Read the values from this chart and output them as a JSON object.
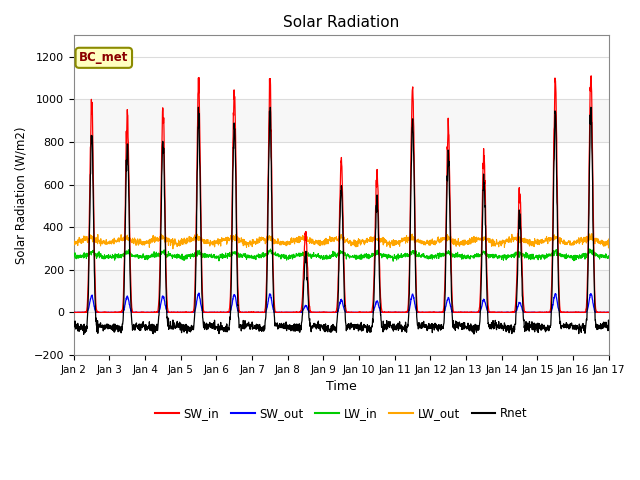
{
  "title": "Solar Radiation",
  "xlabel": "Time",
  "ylabel": "Solar Radiation (W/m2)",
  "ylim": [
    -200,
    1300
  ],
  "xlim": [
    0,
    15
  ],
  "xtick_labels": [
    "Jan 2",
    "Jan 3",
    "Jan 4",
    "Jan 5",
    "Jan 6",
    "Jan 7",
    "Jan 8",
    "Jan 9",
    "Jan 10",
    "Jan 11",
    "Jan 12",
    "Jan 13",
    "Jan 14",
    "Jan 15",
    "Jan 16",
    "Jan 17"
  ],
  "legend_entries": [
    "SW_in",
    "SW_out",
    "LW_in",
    "LW_out",
    "Rnet"
  ],
  "colors": {
    "SW_in": "#FF0000",
    "SW_out": "#0000FF",
    "LW_in": "#00CC00",
    "LW_out": "#FFA500",
    "Rnet": "#000000"
  },
  "annotation_text": "BC_met",
  "annotation_color": "#8B0000",
  "annotation_bg": "#FFFFC0",
  "annotation_border": "#8B8B00",
  "plot_bg": "#FFFFFF",
  "fig_bg": "#FFFFFF",
  "grid_color": "#DCDCDC",
  "title_fontsize": 11,
  "yticks": [
    -200,
    0,
    200,
    400,
    600,
    800,
    1000,
    1200
  ],
  "SW_in_peaks": [
    980,
    930,
    950,
    1050,
    1040,
    1040,
    380,
    700,
    650,
    1050,
    870,
    740,
    560,
    1070,
    1090
  ],
  "night_rnet": -100,
  "lw_in_base": 265,
  "lw_out_base": 335
}
